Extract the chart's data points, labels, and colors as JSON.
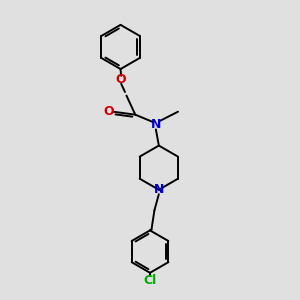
{
  "bg_color": "#e0e0e0",
  "bond_color": "#000000",
  "N_color": "#0000cc",
  "O_color": "#cc0000",
  "Cl_color": "#00aa00",
  "line_width": 1.4,
  "figsize": [
    3.0,
    3.0
  ],
  "dpi": 100,
  "xlim": [
    0,
    10
  ],
  "ylim": [
    0,
    10
  ]
}
